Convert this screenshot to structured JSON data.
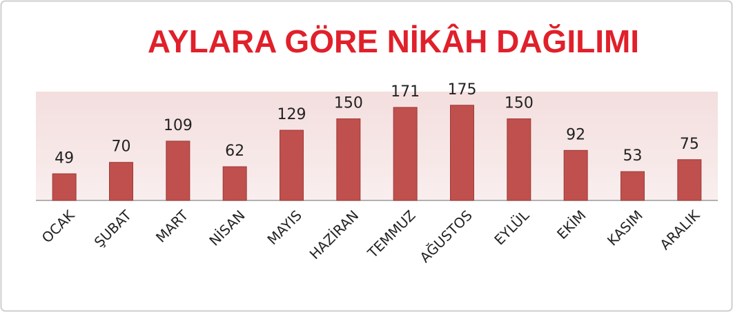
{
  "chart_data": {
    "type": "bar",
    "title": "AYLARA GÖRE NİKÂH DAĞILIMI",
    "categories": [
      "OCAK",
      "ŞUBAT",
      "MART",
      "NİSAN",
      "MAYIS",
      "HAZİRAN",
      "TEMMUZ",
      "AĞUSTOS",
      "EYLÜL",
      "EKİM",
      "KASIM",
      "ARALIK"
    ],
    "values": [
      49,
      70,
      109,
      62,
      129,
      150,
      171,
      175,
      150,
      92,
      53,
      75
    ],
    "color": "#c0504d",
    "ylim": [
      0,
      200
    ]
  }
}
